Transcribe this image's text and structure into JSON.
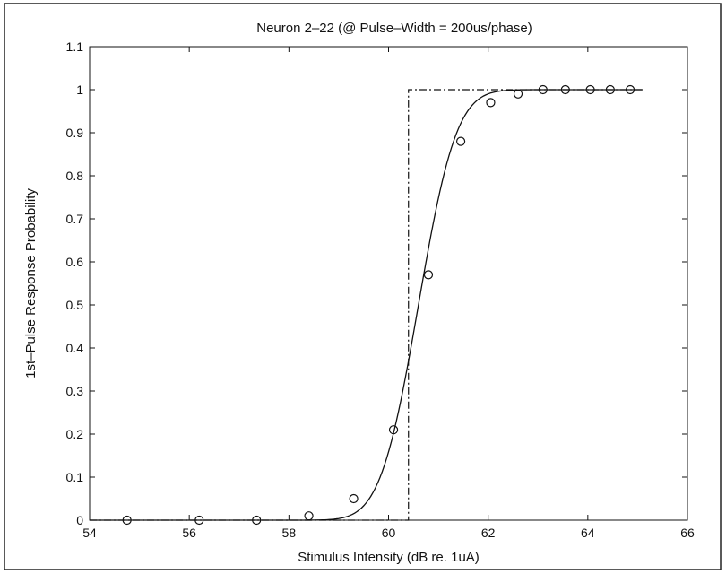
{
  "chart_data": {
    "type": "scatter",
    "title": "Neuron 2–22 (@ Pulse–Width = 200us/phase)",
    "xlabel": "Stimulus Intensity (dB re. 1uA)",
    "ylabel": "1st–Pulse Response Probability",
    "xlim": [
      54,
      66
    ],
    "ylim": [
      0,
      1.1
    ],
    "xticks": [
      54,
      56,
      58,
      60,
      62,
      64,
      66
    ],
    "yticks": [
      0,
      0.1,
      0.2,
      0.3,
      0.4,
      0.5,
      0.6,
      0.7,
      0.8,
      0.9,
      1,
      1.1
    ],
    "xtick_labels": [
      "54",
      "56",
      "58",
      "60",
      "62",
      "64",
      "66"
    ],
    "ytick_labels": [
      "0",
      "0.1",
      "0.2",
      "0.3",
      "0.4",
      "0.5",
      "0.6",
      "0.7",
      "0.8",
      "0.9",
      "1",
      "1.1"
    ],
    "grid": false,
    "legend": "none",
    "series": [
      {
        "style": "markers",
        "marker": "open-circle",
        "x": [
          54.75,
          56.2,
          57.35,
          58.4,
          59.3,
          60.1,
          60.8,
          61.45,
          62.05,
          62.6,
          63.1,
          63.55,
          64.05,
          64.45,
          64.85
        ],
        "y": [
          0,
          0,
          0,
          0.01,
          0.05,
          0.21,
          0.57,
          0.88,
          0.97,
          0.99,
          1,
          1,
          1,
          1,
          1
        ]
      },
      {
        "style": "solid-line",
        "fit": "cumulative-gaussian",
        "x_range": [
          54,
          65.1
        ],
        "mean": 60.6,
        "sd": 0.6
      },
      {
        "style": "dash-dot-line",
        "x": [
          54,
          60.4,
          60.4,
          65.1
        ],
        "y": [
          0,
          0,
          1,
          1
        ]
      }
    ]
  }
}
